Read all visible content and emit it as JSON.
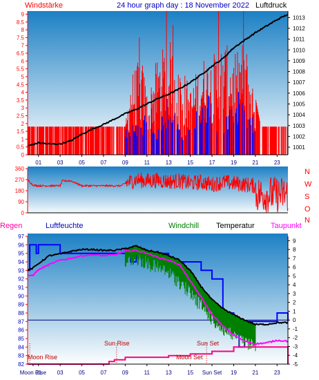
{
  "header": {
    "left_label": "Windstärke",
    "center_title": "24 hour graph day : 18 November 2022",
    "right_label": "Luftdruck"
  },
  "compass_labels": [
    "N",
    "W",
    "S",
    "O",
    "N"
  ],
  "legend": {
    "regen": "Regen",
    "luftfeuchte": "Luftfeuchte",
    "windchill": "Windchill",
    "temperatur": "Temperatur",
    "taupunkt": "Taupunkt"
  },
  "annotations": {
    "moon_rise": "Moon Rise",
    "sun_rise": "Sun Rise",
    "sun_set": "Sun Set",
    "moon_set": "Moon Set"
  },
  "colors": {
    "wind_speed": "#ff0000",
    "wind_gust": "#0000ff",
    "pressure": "#000000",
    "wind_dir": "#ff0000",
    "humidity": "#0000ff",
    "temperature": "#000000",
    "dewpoint": "#ff00ff",
    "windchill": "#008000",
    "rain": "#ff0080",
    "sky_top": "#1c80c4",
    "sky_bottom": "#ffffff"
  },
  "chart_data": [
    {
      "type": "line",
      "title": "24 hour graph day : 18 November 2022",
      "xlabel": "",
      "x_ticks": [
        "01",
        "03",
        "05",
        "07",
        "09",
        "11",
        "13",
        "15",
        "17",
        "19",
        "21",
        "23"
      ],
      "y_left_label": "Windstärke",
      "y_left_ticks": [
        "0",
        "0.5",
        "1",
        "1.5",
        "2",
        "2.5",
        "3",
        "3.5",
        "4",
        "4.5",
        "5",
        "5.5",
        "6",
        "6.5",
        "7",
        "7.5",
        "8",
        "8.5",
        "9"
      ],
      "ylim_left": [
        0,
        9.2
      ],
      "y_right_label": "Luftdruck",
      "y_right_ticks": [
        "1001",
        "1002",
        "1003",
        "1004",
        "1005",
        "1006",
        "1007",
        "1008",
        "1009",
        "1010",
        "1011",
        "1012",
        "1013"
      ],
      "ylim_right": [
        1000.3,
        1013.6
      ],
      "pressure_hours": [
        0,
        1,
        2,
        3,
        4,
        5,
        6,
        7,
        8,
        9,
        10,
        11,
        12,
        13,
        14,
        15,
        16,
        17,
        18,
        19,
        20,
        21,
        22,
        23,
        24
      ],
      "pressure_values": [
        1001.1,
        1001.4,
        1001.3,
        1001.3,
        1001.6,
        1002.2,
        1002.7,
        1003.1,
        1003.6,
        1004.1,
        1004.5,
        1005.0,
        1005.5,
        1005.9,
        1006.4,
        1007.0,
        1007.7,
        1008.5,
        1009.2,
        1010.2,
        1010.9,
        1011.6,
        1012.2,
        1012.8,
        1013.3
      ],
      "wind_speed_profile": [
        [
          0,
          1.8
        ],
        [
          9,
          1.8
        ],
        [
          9.5,
          4.5
        ],
        [
          10.5,
          5.5
        ],
        [
          11,
          3.7
        ],
        [
          12,
          5.5
        ],
        [
          13,
          6.5
        ],
        [
          14,
          5.5
        ],
        [
          15,
          3.7
        ],
        [
          16,
          5.5
        ],
        [
          17,
          5.5
        ],
        [
          18,
          6.5
        ],
        [
          19,
          5.5
        ],
        [
          20,
          6.5
        ],
        [
          21,
          3.7
        ],
        [
          21.5,
          1.8
        ],
        [
          24,
          1.8
        ]
      ],
      "wind_speed_peaks": [
        [
          10.3,
          7.5
        ],
        [
          12.8,
          9.2
        ],
        [
          13.4,
          8.3
        ],
        [
          17.6,
          9.2
        ],
        [
          19.9,
          9.2
        ]
      ],
      "wind_gust_profile": [
        [
          9,
          1.8
        ],
        [
          10.5,
          1.8
        ],
        [
          11,
          3.7
        ],
        [
          12,
          1.8
        ],
        [
          13,
          3.7
        ],
        [
          14,
          1.8
        ],
        [
          15,
          1.8
        ],
        [
          16,
          3.7
        ],
        [
          17,
          3.7
        ],
        [
          18,
          1.8
        ],
        [
          19,
          3.7
        ],
        [
          20,
          3.7
        ],
        [
          21,
          1.8
        ]
      ]
    },
    {
      "type": "line",
      "y_ticks": [
        "0",
        "90",
        "180",
        "270",
        "360"
      ],
      "ylim": [
        0,
        360
      ],
      "wind_dir_hours": [
        0,
        0.5,
        1,
        2,
        3,
        3.2,
        4,
        5,
        6,
        7,
        8,
        8.6,
        9,
        10,
        11,
        12,
        13,
        14,
        15,
        16,
        17,
        18,
        19,
        20,
        21,
        21.5,
        22,
        23,
        23.5,
        24
      ],
      "wind_dir_values": [
        270,
        225,
        220,
        220,
        220,
        260,
        260,
        220,
        220,
        220,
        220,
        220,
        240,
        270,
        260,
        265,
        255,
        260,
        240,
        250,
        230,
        250,
        240,
        230,
        220,
        60,
        180,
        90,
        60,
        120
      ]
    },
    {
      "type": "line",
      "y_left_ticks": [
        "82",
        "83",
        "84",
        "85",
        "86",
        "87",
        "88",
        "89",
        "90",
        "91",
        "92",
        "93",
        "94",
        "95",
        "96",
        "97"
      ],
      "ylim_left": [
        82,
        97
      ],
      "y_right_ticks": [
        "-5",
        "-4",
        "-3",
        "-2",
        "-1",
        "0",
        "1",
        "2",
        "3",
        "4",
        "5",
        "6",
        "7",
        "8",
        "9"
      ],
      "ylim_right": [
        -5,
        9.5
      ],
      "x_ticks": [
        "Moon Rise",
        "01",
        "03",
        "05",
        "07",
        "09",
        "11",
        "13",
        "15",
        "Sun Set",
        "19",
        "21",
        "23"
      ],
      "humidity_hours": [
        0,
        0.2,
        0.8,
        1,
        2,
        3,
        4,
        5,
        6,
        7,
        8,
        8.5,
        9,
        9.5,
        10,
        11,
        12,
        13,
        14,
        15,
        16,
        17,
        18,
        19,
        19.5,
        20,
        21,
        22,
        23,
        24
      ],
      "humidity_values": [
        93,
        96,
        95,
        96,
        96,
        95,
        95,
        95,
        95,
        95,
        95,
        95,
        95,
        94,
        95,
        95,
        95,
        94,
        94,
        94,
        93,
        92,
        88,
        86,
        84,
        87,
        87,
        87,
        88,
        87
      ],
      "temperature_hours": [
        0,
        0.5,
        1,
        2,
        3,
        4,
        5,
        6,
        7,
        8,
        9,
        10,
        11,
        12,
        13,
        14,
        15,
        16,
        17,
        18,
        19,
        20,
        21,
        22,
        23,
        24
      ],
      "temperature_values": [
        5.6,
        5.9,
        6.4,
        7.3,
        7.5,
        7.8,
        8.0,
        8.0,
        7.9,
        7.9,
        8.1,
        8.4,
        7.9,
        7.7,
        7.3,
        6.8,
        5.6,
        3.8,
        2.3,
        1.3,
        0.6,
        0,
        -0.5,
        -0.5,
        -0.3,
        -0.3
      ],
      "dewpoint_hours": [
        0,
        0.5,
        1,
        2,
        3,
        4,
        5,
        6,
        7,
        8,
        9,
        10,
        11,
        12,
        13,
        14,
        15,
        16,
        17,
        18,
        19,
        20,
        21,
        22,
        23,
        24
      ],
      "dewpoint_values": [
        5.0,
        5.1,
        5.7,
        6.3,
        6.8,
        7.0,
        7.3,
        7.4,
        7.3,
        7.4,
        7.8,
        7.9,
        7.6,
        7.1,
        6.8,
        6.3,
        4.4,
        2.6,
        0.6,
        -0.7,
        -1.7,
        -2.4,
        -2.7,
        -2.6,
        -2.3,
        -2.4
      ],
      "windchill_hours": [
        9,
        10,
        11,
        12,
        13,
        14,
        15,
        16,
        17,
        18,
        19,
        20,
        21
      ],
      "windchill_values": [
        7.3,
        7.7,
        7.2,
        6.7,
        6.1,
        5.1,
        3.8,
        2.4,
        0.9,
        -0.3,
        -1.1,
        -1.8,
        -2.3
      ],
      "rain_hours": [
        0,
        7,
        7.5,
        8,
        9,
        12,
        13,
        14,
        15,
        16,
        17,
        18,
        19,
        23.5,
        24
      ],
      "rain_values": [
        82,
        82,
        82.3,
        82.5,
        82.8,
        82.8,
        83,
        83,
        83.2,
        83.2,
        83.5,
        83.5,
        84,
        84,
        82
      ]
    }
  ]
}
